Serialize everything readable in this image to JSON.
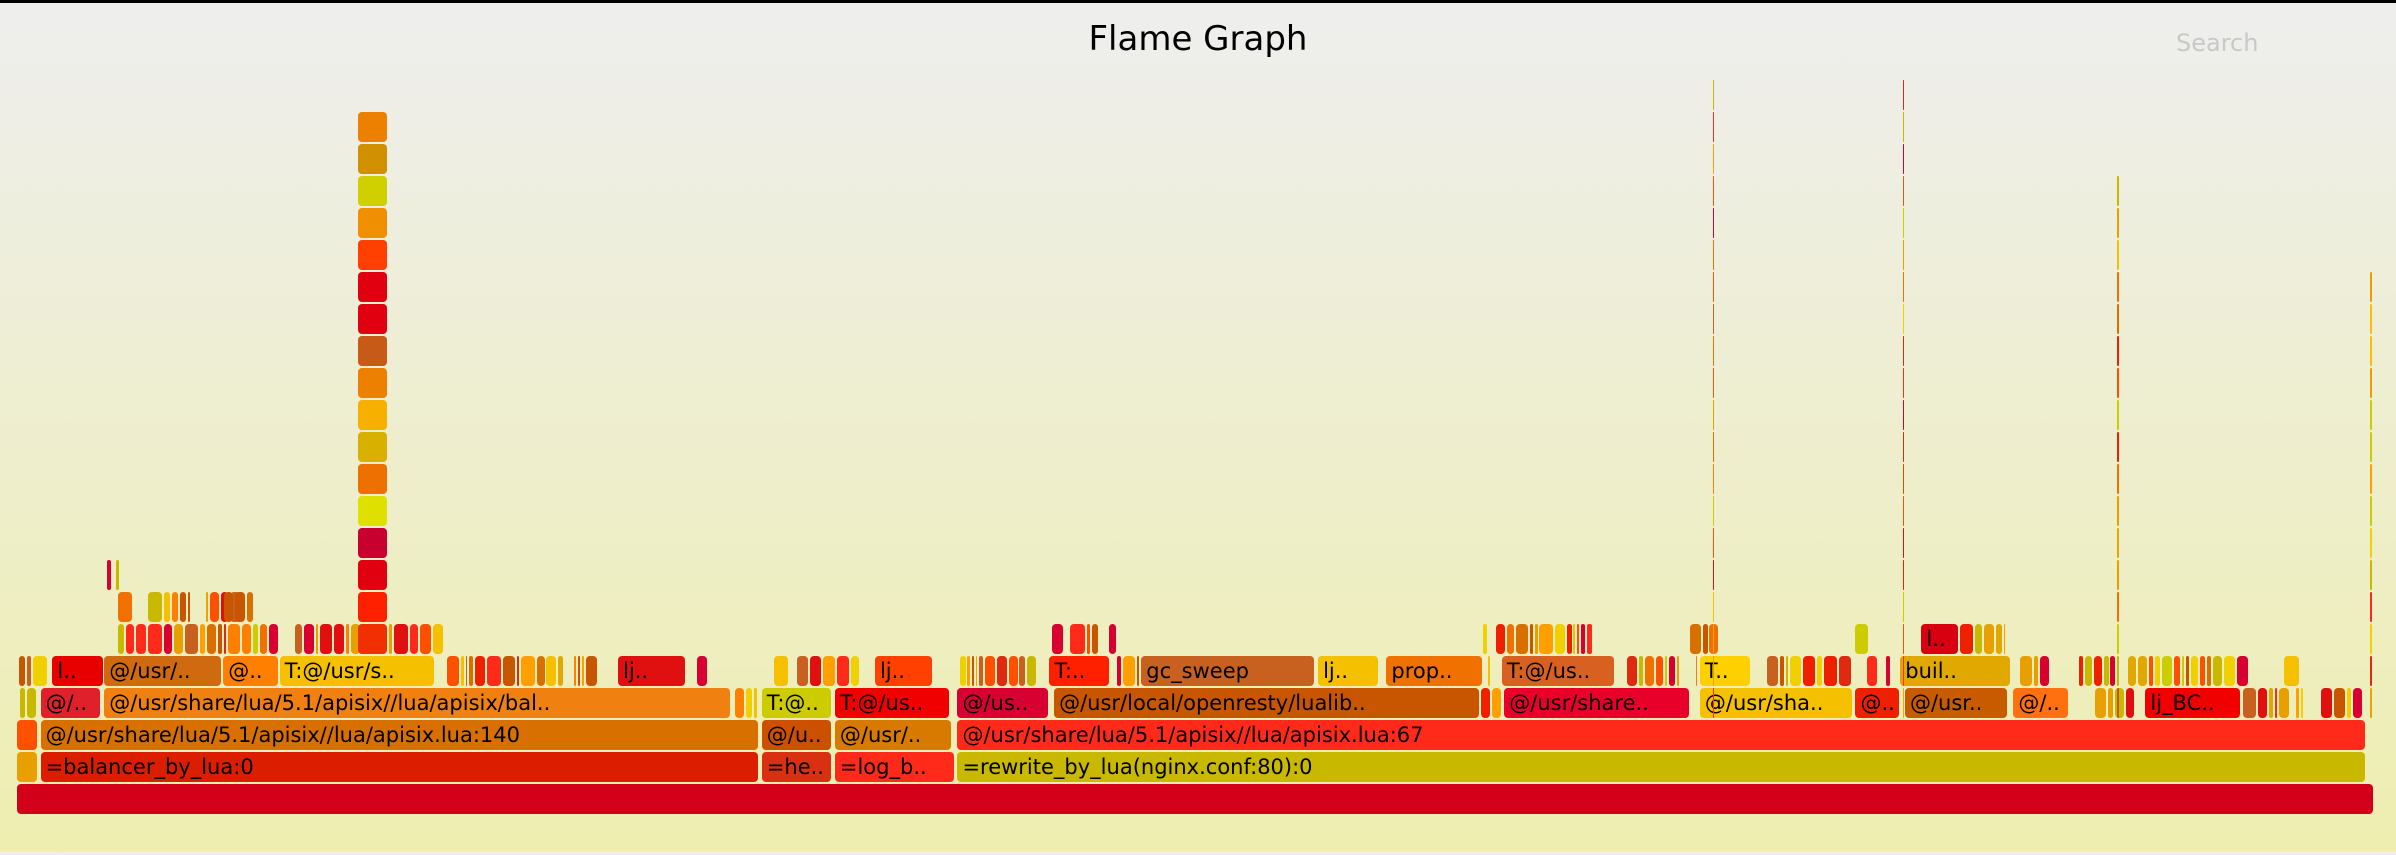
{
  "header": {
    "title": "Flame Graph",
    "search_label": "Search"
  },
  "palette": [
    "#e8a000",
    "#f5c000",
    "#ff5000",
    "#d87000",
    "#e01010",
    "#ff8000",
    "#cccc00",
    "#c85500",
    "#ee2000",
    "#f07000",
    "#e0a800",
    "#d80030",
    "#ff2a1a",
    "#c8b800",
    "#dd2a10",
    "#f0d000",
    "#ffa000",
    "#c86020"
  ],
  "frames": [
    {
      "depth": 0,
      "start": 0,
      "pct": 100,
      "label": "",
      "color": "#d20018"
    },
    {
      "depth": 1,
      "start": 0,
      "pct": 0.9,
      "label": "",
      "color": "#e8a000"
    },
    {
      "depth": 1,
      "start": 1.0,
      "pct": 30.5,
      "label": "=balancer_by_lua:0",
      "color": "#dc1e00"
    },
    {
      "depth": 1,
      "start": 31.6,
      "pct": 3.0,
      "label": "=he..",
      "color": "#d83010"
    },
    {
      "depth": 1,
      "start": 34.7,
      "pct": 5.1,
      "label": "=log_b..",
      "color": "#ff2a1a"
    },
    {
      "depth": 1,
      "start": 39.9,
      "pct": 59.8,
      "label": "=rewrite_by_lua(nginx.conf:80):0",
      "color": "#c8b800"
    },
    {
      "depth": 2,
      "start": 0,
      "pct": 0.9,
      "label": "",
      "color": "#ff5000"
    },
    {
      "depth": 2,
      "start": 1.0,
      "pct": 30.5,
      "label": "@/usr/share/lua/5.1/apisix//lua/apisix.lua:140",
      "color": "#d87000"
    },
    {
      "depth": 2,
      "start": 31.6,
      "pct": 3.0,
      "label": "@/u..",
      "color": "#cc5000"
    },
    {
      "depth": 2,
      "start": 34.7,
      "pct": 5.0,
      "label": "@/usr/..",
      "color": "#d87a00"
    },
    {
      "depth": 2,
      "start": 39.9,
      "pct": 59.8,
      "label": "@/usr/share/lua/5.1/apisix//lua/apisix.lua:67",
      "color": "#ff2a1a"
    },
    {
      "depth": 3,
      "start": 1.0,
      "pct": 2.6,
      "label": "@/..",
      "color": "#e0202a"
    },
    {
      "depth": 3,
      "start": 3.7,
      "pct": 26.6,
      "label": "@/usr/share/lua/5.1/apisix//lua/apisix/bal..",
      "color": "#f08010"
    },
    {
      "depth": 3,
      "start": 31.6,
      "pct": 3.0,
      "label": "T:@..",
      "color": "#cccc00"
    },
    {
      "depth": 3,
      "start": 34.7,
      "pct": 4.9,
      "label": "T:@/us..",
      "color": "#f00000"
    },
    {
      "depth": 3,
      "start": 39.9,
      "pct": 3.9,
      "label": "@/us..",
      "color": "#d80030"
    },
    {
      "depth": 3,
      "start": 44.0,
      "pct": 18.1,
      "label": "@/usr/local/openresty/lualib..",
      "color": "#c85500"
    },
    {
      "depth": 3,
      "start": 63.1,
      "pct": 7.9,
      "label": "@/usr/share..",
      "color": "#e8002a"
    },
    {
      "depth": 3,
      "start": 71.4,
      "pct": 6.5,
      "label": "@/usr/sha..",
      "color": "#f5c000"
    },
    {
      "depth": 3,
      "start": 78.0,
      "pct": 1.9,
      "label": "@..",
      "color": "#ee2000"
    },
    {
      "depth": 3,
      "start": 80.1,
      "pct": 4.4,
      "label": "@/usr..",
      "color": "#c85a00"
    },
    {
      "depth": 3,
      "start": 84.7,
      "pct": 2.4,
      "label": "@/..",
      "color": "#ff7010"
    },
    {
      "depth": 3,
      "start": 90.3,
      "pct": 4.1,
      "label": "lj_BC..",
      "color": "#f00000"
    },
    {
      "depth": 4,
      "start": 1.5,
      "pct": 2.2,
      "label": "l..",
      "color": "#e80000"
    },
    {
      "depth": 4,
      "start": 3.7,
      "pct": 5.0,
      "label": "@/usr/..",
      "color": "#d06a10"
    },
    {
      "depth": 4,
      "start": 8.75,
      "pct": 2.4,
      "label": "@..",
      "color": "#ff8000"
    },
    {
      "depth": 4,
      "start": 11.15,
      "pct": 6.6,
      "label": "T:@/usr/s..",
      "color": "#f5c000"
    },
    {
      "depth": 4,
      "start": 25.5,
      "pct": 2.9,
      "label": "lj..",
      "color": "#e01010"
    },
    {
      "depth": 4,
      "start": 36.4,
      "pct": 2.5,
      "label": "lj..",
      "color": "#ff4000"
    },
    {
      "depth": 4,
      "start": 43.8,
      "pct": 2.6,
      "label": "T:..",
      "color": "#ff2000"
    },
    {
      "depth": 4,
      "start": 47.7,
      "pct": 7.4,
      "label": "gc_sweep",
      "color": "#c86020"
    },
    {
      "depth": 4,
      "start": 55.2,
      "pct": 2.6,
      "label": "lj..",
      "color": "#f5c000"
    },
    {
      "depth": 4,
      "start": 58.1,
      "pct": 4.1,
      "label": "prop..",
      "color": "#f07000"
    },
    {
      "depth": 4,
      "start": 63.0,
      "pct": 4.8,
      "label": "T:@/us..",
      "color": "#d86020"
    },
    {
      "depth": 4,
      "start": 71.4,
      "pct": 2.2,
      "label": "T..",
      "color": "#ffd000"
    },
    {
      "depth": 4,
      "start": 79.9,
      "pct": 4.7,
      "label": "buil..",
      "color": "#e0a800"
    },
    {
      "depth": 5,
      "start": 80.8,
      "pct": 1.6,
      "label": "l..",
      "color": "#d80010"
    }
  ],
  "tower": {
    "start": 14.45,
    "pct": 1.3,
    "from_depth": 5,
    "to_depth": 21,
    "colors": [
      "#f03000",
      "#ff2000",
      "#e00010",
      "#c80030",
      "#e0e000",
      "#ee7000",
      "#d8b000",
      "#f8b000",
      "#ee8000",
      "#c85a18",
      "#e00010",
      "#e00010",
      "#ff4000",
      "#f09000",
      "#d0d000",
      "#d09000",
      "#ee8000",
      "#d83020"
    ]
  },
  "spikes": [
    {
      "start": 71.95,
      "pct": 0.13,
      "top_depth": 22
    },
    {
      "start": 80.0,
      "pct": 0.1,
      "top_depth": 22
    },
    {
      "start": 89.1,
      "pct": 0.12,
      "top_depth": 19
    },
    {
      "start": 99.85,
      "pct": 0.15,
      "top_depth": 16
    }
  ]
}
